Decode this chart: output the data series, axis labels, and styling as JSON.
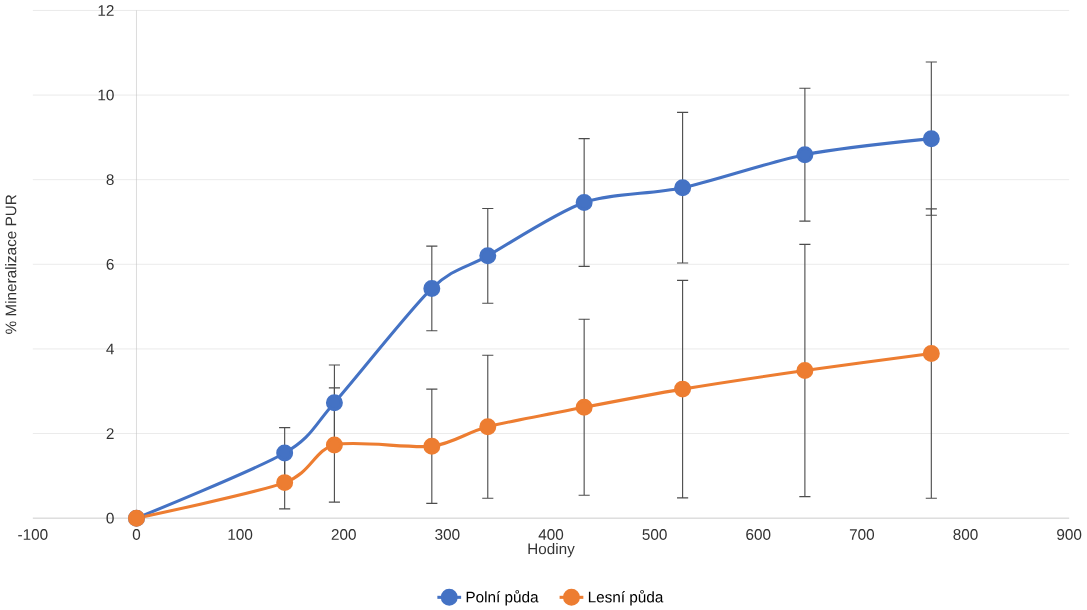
{
  "chart_data": {
    "type": "line",
    "xlabel": "Hodiny",
    "ylabel": "% Mineralizace PUR",
    "x": [
      0,
      143,
      191,
      285,
      339,
      432,
      527,
      645,
      767
    ],
    "series": [
      {
        "name": "Polní půda",
        "color": "#4472c4",
        "values": [
          0,
          1.54,
          2.73,
          5.43,
          6.2,
          7.46,
          7.81,
          8.59,
          8.97
        ],
        "errors": [
          null,
          0.6,
          0.89,
          1.0,
          1.12,
          1.51,
          1.78,
          1.57,
          1.81
        ]
      },
      {
        "name": "Lesní půda",
        "color": "#ed7d31",
        "values": [
          0,
          0.84,
          1.73,
          1.7,
          2.16,
          2.62,
          3.05,
          3.49,
          3.89
        ],
        "errors": [
          null,
          0.62,
          1.35,
          1.35,
          1.69,
          2.08,
          2.57,
          2.98,
          3.42
        ]
      }
    ],
    "xlim": [
      -100,
      900
    ],
    "xticks": [
      -100,
      0,
      100,
      200,
      300,
      400,
      500,
      600,
      700,
      800,
      900
    ],
    "ylim": [
      0,
      12
    ],
    "yticks": [
      0,
      2,
      4,
      6,
      8,
      10,
      12
    ],
    "grid": "y",
    "legend": "bottom",
    "marker": "circle",
    "line_style": "solid"
  }
}
